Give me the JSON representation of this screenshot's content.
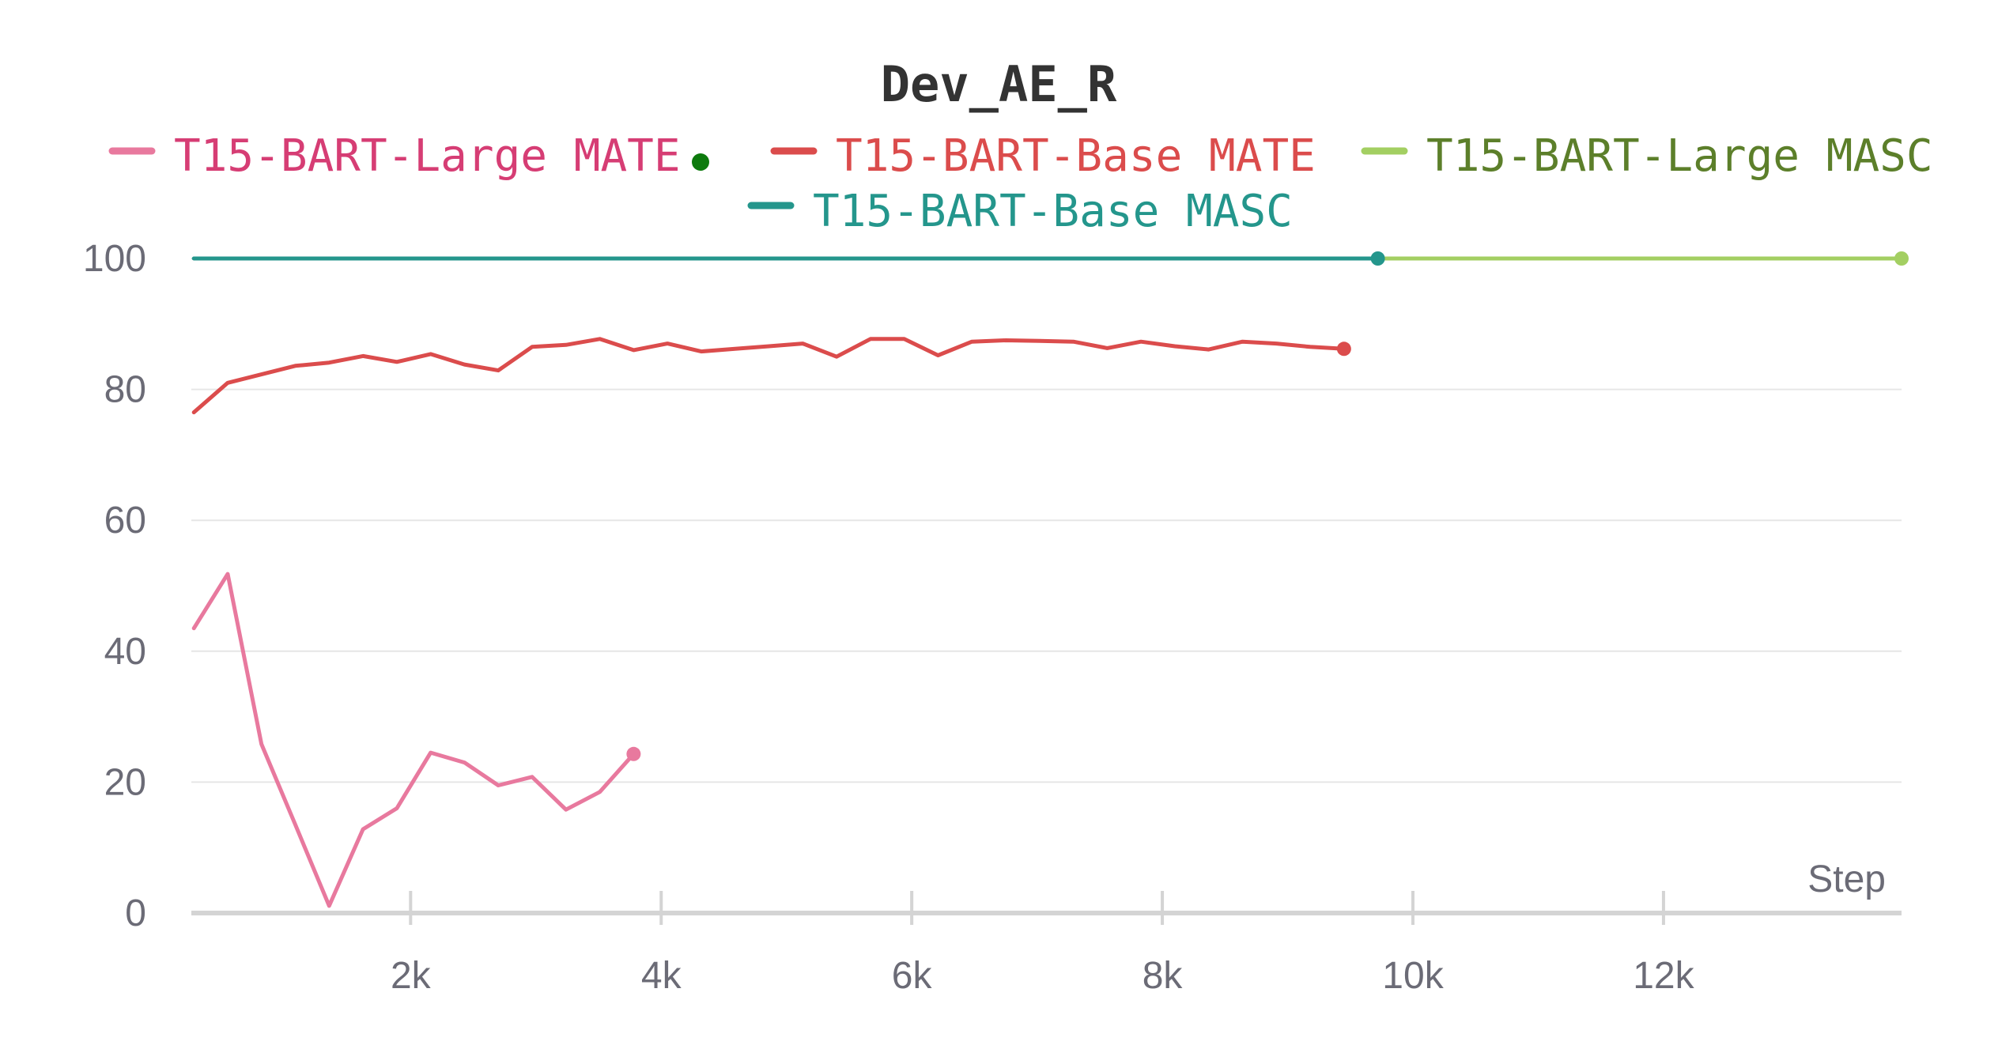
{
  "chart_data": {
    "type": "line",
    "title": "Dev_AE_R",
    "xlabel": "Step",
    "ylabel": "",
    "xlim": [
      250,
      13900
    ],
    "ylim": [
      0,
      100
    ],
    "x_ticks": [
      2000,
      4000,
      6000,
      8000,
      10000,
      12000
    ],
    "x_tick_labels": [
      "2k",
      "4k",
      "6k",
      "8k",
      "10k",
      "12k"
    ],
    "y_ticks": [
      0,
      20,
      40,
      60,
      80,
      100
    ],
    "y_tick_labels": [
      "0",
      "20",
      "40",
      "60",
      "80",
      "100"
    ],
    "grid": true,
    "legend_position": "top",
    "series": [
      {
        "name": "T15-BART-Large MATE",
        "color": "#e8799e",
        "legend_text_color": "#d63d74",
        "x": [
          270,
          540,
          810,
          1080,
          1350,
          1620,
          1890,
          2160,
          2430,
          2700,
          2970,
          3240,
          3510,
          3780
        ],
        "y": [
          43.5,
          51.8,
          25.8,
          13.5,
          1.1,
          12.8,
          16.0,
          24.5,
          23.0,
          19.5,
          20.8,
          15.8,
          18.5,
          24.3
        ]
      },
      {
        "name": "T15-BART-Base MATE",
        "color": "#db4c4c",
        "legend_text_color": "#db4c4c",
        "x": [
          270,
          540,
          810,
          1080,
          1350,
          1620,
          1890,
          2160,
          2430,
          2700,
          2970,
          3240,
          3510,
          3780,
          4050,
          4320,
          4590,
          4860,
          5130,
          5400,
          5670,
          5940,
          6210,
          6480,
          6750,
          7020,
          7290,
          7560,
          7830,
          8100,
          8370,
          8640,
          8910,
          9180,
          9450
        ],
        "y": [
          76.5,
          81.0,
          82.3,
          83.6,
          84.1,
          85.1,
          84.2,
          85.4,
          83.8,
          82.9,
          86.5,
          86.8,
          87.7,
          86.0,
          87.0,
          85.8,
          86.2,
          86.6,
          87.0,
          85.0,
          87.7,
          87.7,
          85.2,
          87.3,
          87.5,
          87.4,
          87.3,
          86.3,
          87.3,
          86.6,
          86.1,
          87.3,
          87.0,
          86.5,
          86.2
        ]
      },
      {
        "name": "T15-BART-Large MASC",
        "color": "#a3cf62",
        "legend_text_color": "#5c7f2a",
        "x": [
          9720,
          13900
        ],
        "y": [
          100,
          100
        ]
      },
      {
        "name": "T15-BART-Base MASC",
        "color": "#24968c",
        "legend_text_color": "#24968c",
        "x": [
          270,
          9720
        ],
        "y": [
          100,
          100
        ]
      }
    ]
  },
  "legend_extra_marker_color": "#0d7a0d"
}
